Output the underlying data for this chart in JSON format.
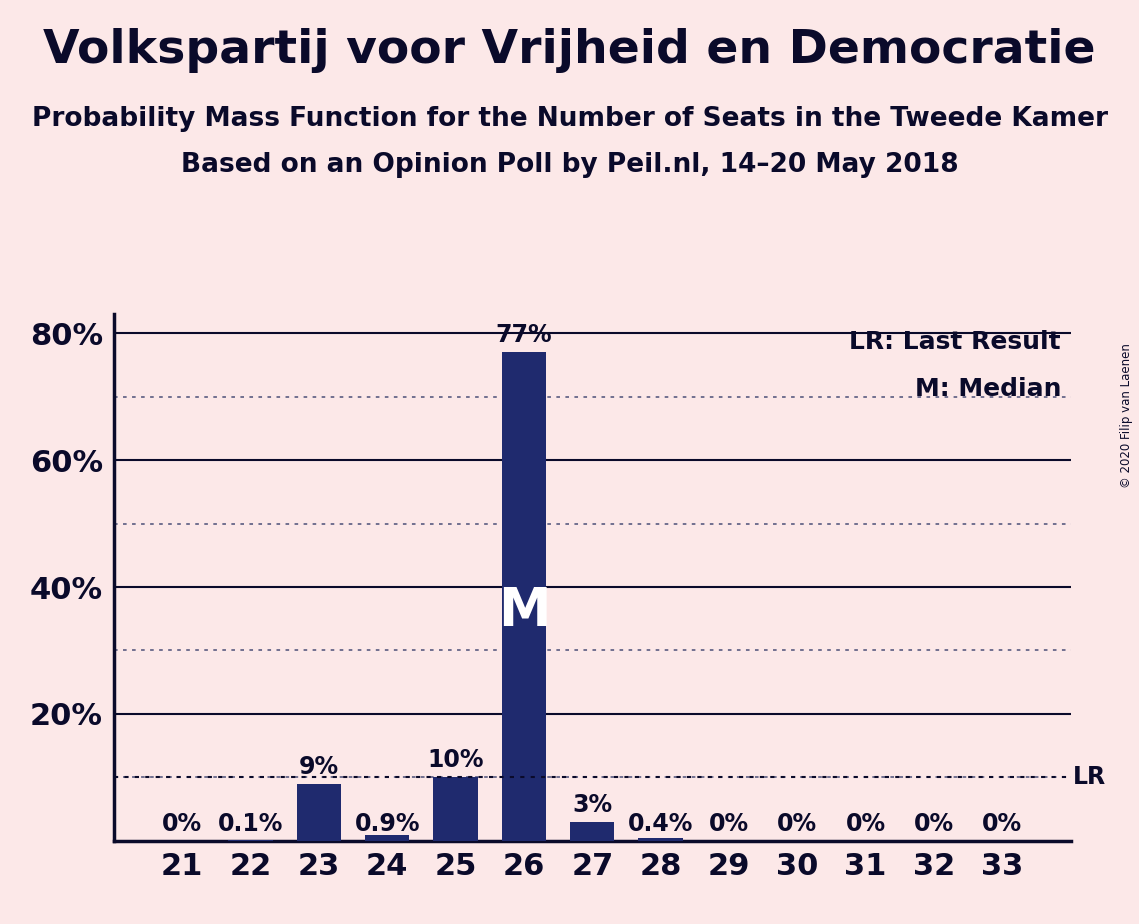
{
  "title": "Volkspartij voor Vrijheid en Democratie",
  "subtitle1": "Probability Mass Function for the Number of Seats in the Tweede Kamer",
  "subtitle2": "Based on an Opinion Poll by Peil.nl, 14–20 May 2018",
  "copyright": "© 2020 Filip van Laenen",
  "categories": [
    21,
    22,
    23,
    24,
    25,
    26,
    27,
    28,
    29,
    30,
    31,
    32,
    33
  ],
  "values": [
    0.0,
    0.1,
    9.0,
    0.9,
    10.0,
    77.0,
    3.0,
    0.4,
    0.0,
    0.0,
    0.0,
    0.0,
    0.0
  ],
  "labels": [
    "0%",
    "0.1%",
    "9%",
    "0.9%",
    "10%",
    "77%",
    "3%",
    "0.4%",
    "0%",
    "0%",
    "0%",
    "0%",
    "0%"
  ],
  "bar_color": "#1f2a6e",
  "background_color": "#fce8e8",
  "ytick_positions": [
    20,
    40,
    60,
    80
  ],
  "ytick_labels": [
    "20%",
    "40%",
    "60%",
    "80%"
  ],
  "dotted_lines": [
    10,
    30,
    50,
    70
  ],
  "solid_lines": [
    20,
    40,
    60,
    80
  ],
  "lr_value": 10.0,
  "median_seat": 26,
  "legend_lr": "LR: Last Result",
  "legend_m": "M: Median",
  "title_fontsize": 34,
  "subtitle_fontsize": 19,
  "axis_fontsize": 22,
  "label_fontsize": 17,
  "bar_width": 0.65,
  "ylim_max": 83
}
